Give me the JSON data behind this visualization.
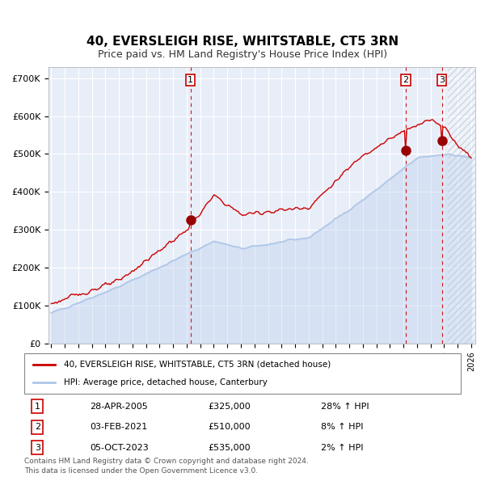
{
  "title": "40, EVERSLEIGH RISE, WHITSTABLE, CT5 3RN",
  "subtitle": "Price paid vs. HM Land Registry's House Price Index (HPI)",
  "legend_line1": "40, EVERSLEIGH RISE, WHITSTABLE, CT5 3RN (detached house)",
  "legend_line2": "HPI: Average price, detached house, Canterbury",
  "transactions": [
    {
      "num": 1,
      "date": "28-APR-2005",
      "price": 325000,
      "pct": "28%",
      "dir": "↑"
    },
    {
      "num": 2,
      "date": "03-FEB-2021",
      "price": 510000,
      "pct": "8%",
      "dir": "↑"
    },
    {
      "num": 3,
      "date": "05-OCT-2023",
      "price": 535000,
      "pct": "2%",
      "dir": "↑"
    }
  ],
  "footnote1": "Contains HM Land Registry data © Crown copyright and database right 2024.",
  "footnote2": "This data is licensed under the Open Government Licence v3.0.",
  "hpi_color": "#aec6e8",
  "price_color": "#cc0000",
  "dot_color": "#990000",
  "vline_color": "#cc0000",
  "bg_color": "#e8eef8",
  "hatch_color": "#c0c8d8",
  "ylim": [
    0,
    730000
  ],
  "yticks": [
    0,
    100000,
    200000,
    300000,
    400000,
    500000,
    600000,
    700000
  ],
  "ytick_labels": [
    "£0",
    "£100K",
    "£200K",
    "£300K",
    "£400K",
    "£500K",
    "£600K",
    "£700K"
  ]
}
